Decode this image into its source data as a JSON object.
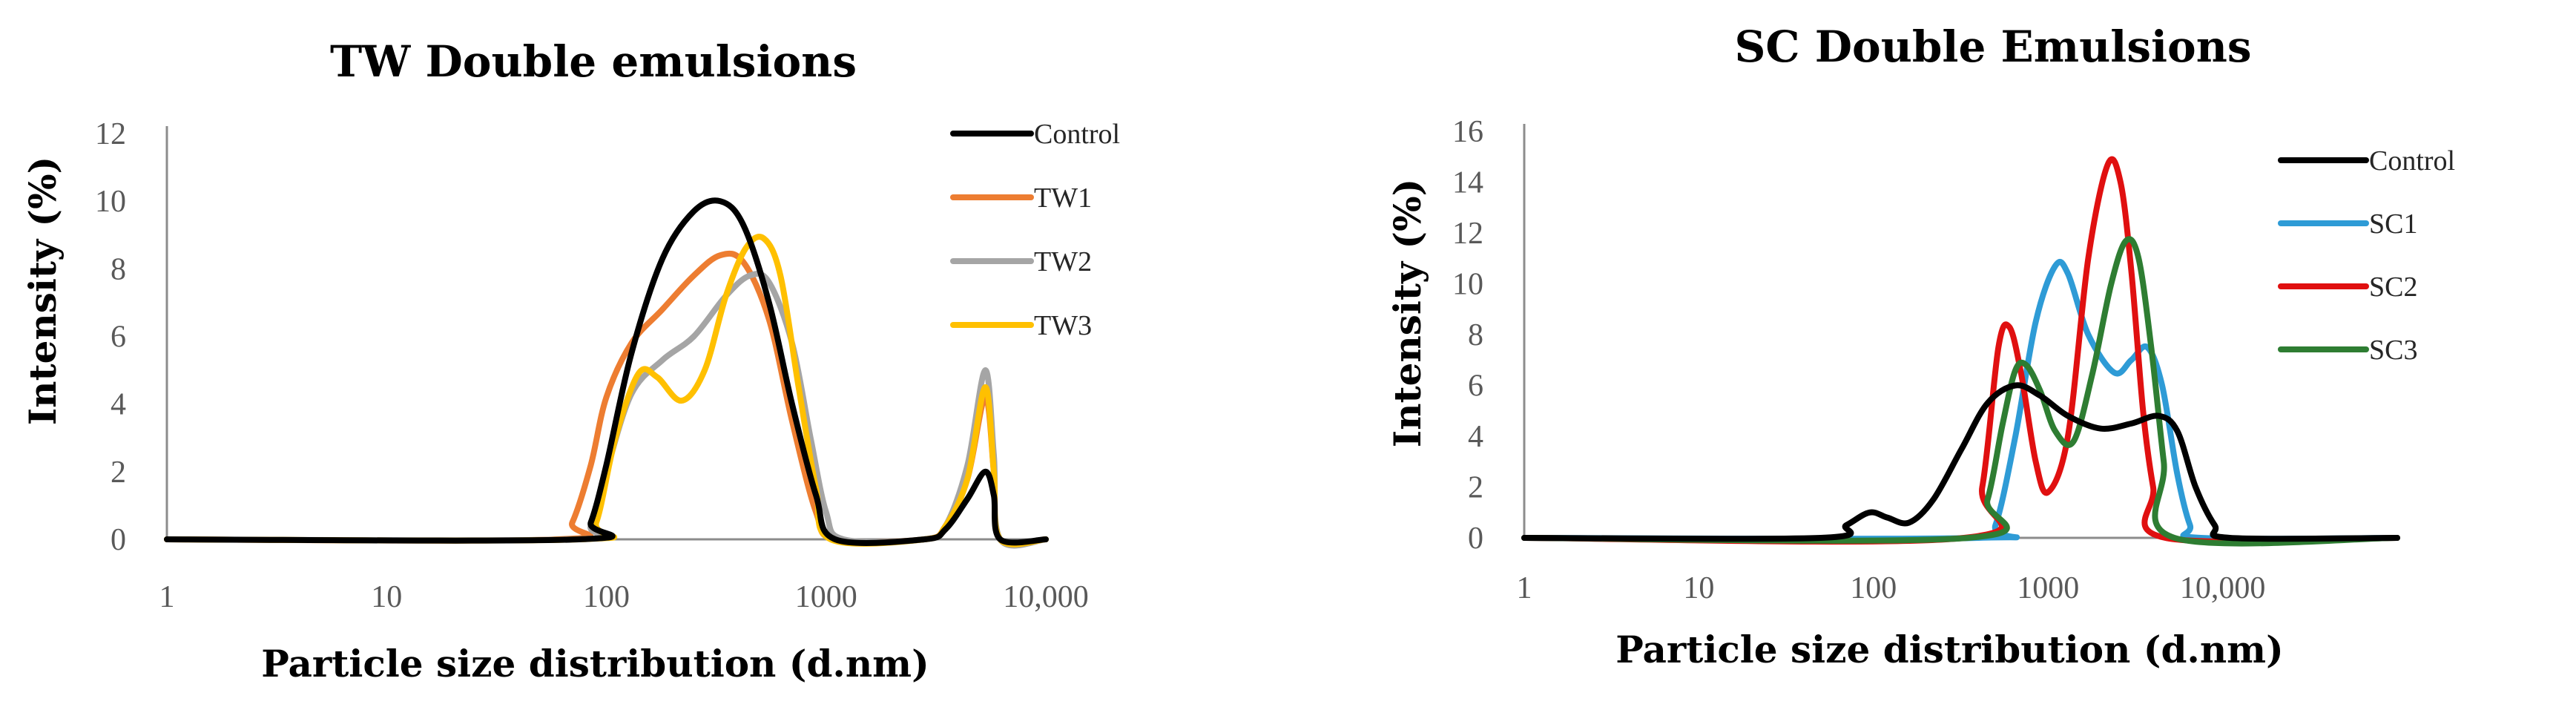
{
  "chart_data": [
    {
      "type": "line",
      "title": "TW Double emulsions",
      "xlabel": "Particle size distribution (d.nm)",
      "ylabel": "Intensity (%)",
      "x_scale": "log",
      "xlim": [
        1,
        10000
      ],
      "ylim": [
        0,
        12
      ],
      "x_ticks": [
        1,
        10,
        100,
        1000,
        10000
      ],
      "x_tick_labels": [
        "1",
        "10",
        "100",
        "1000",
        "10,000"
      ],
      "y_ticks": [
        0,
        2,
        4,
        6,
        8,
        10,
        12
      ],
      "y_tick_labels": [
        "0",
        "2",
        "4",
        "6",
        "8",
        "10",
        "12"
      ],
      "legend_position": "top-right",
      "series": [
        {
          "name": "Control",
          "color": "#000000",
          "x": [
            1,
            75,
            85,
            100,
            130,
            180,
            250,
            330,
            420,
            550,
            700,
            900,
            1100,
            2800,
            3500,
            4400,
            5300,
            5800,
            6200,
            10000
          ],
          "y": [
            0,
            0,
            0.5,
            2.2,
            5.5,
            8.3,
            9.7,
            10,
            9.3,
            7,
            4,
            1.3,
            0,
            0,
            0.3,
            1.2,
            2,
            1.3,
            0,
            0
          ]
        },
        {
          "name": "TW1",
          "color": "#ED7D31",
          "x": [
            1,
            60,
            70,
            85,
            100,
            130,
            180,
            250,
            330,
            420,
            550,
            700,
            900,
            1100,
            2800,
            3500,
            4400,
            5300,
            5800,
            6200,
            10000
          ],
          "y": [
            0,
            0,
            0.5,
            2.2,
            4.2,
            5.8,
            6.8,
            7.8,
            8.4,
            8.2,
            6.5,
            3.5,
            0.8,
            0,
            0,
            0.4,
            1.8,
            4.2,
            2,
            0,
            0
          ]
        },
        {
          "name": "TW2",
          "color": "#A5A5A5",
          "x": [
            1,
            70,
            85,
            100,
            130,
            180,
            250,
            350,
            450,
            550,
            700,
            850,
            1000,
            1200,
            2800,
            3500,
            4400,
            5300,
            5800,
            6200,
            10000
          ],
          "y": [
            0,
            0,
            0.4,
            2,
            4.3,
            5.3,
            6,
            7.2,
            7.8,
            7.6,
            5.8,
            3,
            0.8,
            0,
            0,
            0.4,
            2.2,
            5,
            2.5,
            0,
            0
          ]
        },
        {
          "name": "TW3",
          "color": "#FFC000",
          "x": [
            1,
            75,
            90,
            110,
            140,
            170,
            220,
            280,
            350,
            430,
            520,
            620,
            750,
            900,
            1050,
            2800,
            3500,
            4400,
            5300,
            5800,
            6200,
            10000
          ],
          "y": [
            0,
            0,
            0.5,
            3,
            4.9,
            4.8,
            4.1,
            5,
            7.2,
            8.6,
            8.9,
            7.8,
            4.5,
            1.5,
            0,
            0,
            0.4,
            1.8,
            4.5,
            2,
            0,
            0
          ]
        }
      ]
    },
    {
      "type": "line",
      "title": "SC Double Emulsions",
      "xlabel": "Particle size distribution (d.nm)",
      "ylabel": "Intensity (%)",
      "x_scale": "log",
      "xlim": [
        1,
        100000
      ],
      "ylim": [
        0,
        16
      ],
      "x_ticks": [
        1,
        10,
        100,
        1000,
        10000
      ],
      "x_tick_labels": [
        "1",
        "10",
        "100",
        "1000",
        "10,000"
      ],
      "y_ticks": [
        0,
        2,
        4,
        6,
        8,
        10,
        12,
        14,
        16
      ],
      "y_tick_labels": [
        "0",
        "2",
        "4",
        "6",
        "8",
        "10",
        "12",
        "14",
        "16"
      ],
      "legend_position": "right",
      "series": [
        {
          "name": "Control",
          "color": "#000000",
          "x": [
            1,
            50,
            70,
            95,
            120,
            160,
            220,
            320,
            450,
            650,
            900,
            1300,
            2000,
            3000,
            4300,
            5500,
            7000,
            9000,
            11000,
            100000
          ],
          "y": [
            0,
            0,
            0.5,
            1,
            0.8,
            0.6,
            1.5,
            3.5,
            5.3,
            6,
            5.6,
            4.8,
            4.3,
            4.5,
            4.8,
            4.2,
            2,
            0.5,
            0,
            0
          ]
        },
        {
          "name": "SC1",
          "color": "#2E9BD6",
          "x": [
            1,
            400,
            500,
            650,
            850,
            1100,
            1300,
            1700,
            2400,
            3000,
            3700,
            4500,
            5500,
            6500,
            7500,
            100000
          ],
          "y": [
            0,
            0,
            0.5,
            4,
            8.5,
            10.7,
            10.4,
            8,
            6.5,
            7,
            7.5,
            6,
            2.5,
            0.5,
            0,
            0
          ]
        },
        {
          "name": "SC2",
          "color": "#E01010",
          "x": [
            1,
            330,
            420,
            520,
            600,
            700,
            850,
            1000,
            1300,
            1700,
            2200,
            2600,
            3000,
            3500,
            4000,
            4700,
            100000
          ],
          "y": [
            0,
            0,
            2,
            7.5,
            8.3,
            6.5,
            3,
            1.8,
            4,
            11,
            14.7,
            14,
            10.5,
            5,
            2,
            0,
            0
          ]
        },
        {
          "name": "SC3",
          "color": "#2E7D32",
          "x": [
            1,
            350,
            450,
            550,
            650,
            750,
            900,
            1100,
            1400,
            1800,
            2300,
            2800,
            3300,
            3900,
            4600,
            5300,
            100000
          ],
          "y": [
            0,
            0,
            1.5,
            4.5,
            6.6,
            6.8,
            5.8,
            4.2,
            3.8,
            6.5,
            10,
            11.7,
            11,
            7.5,
            3,
            0,
            0
          ]
        }
      ]
    }
  ]
}
